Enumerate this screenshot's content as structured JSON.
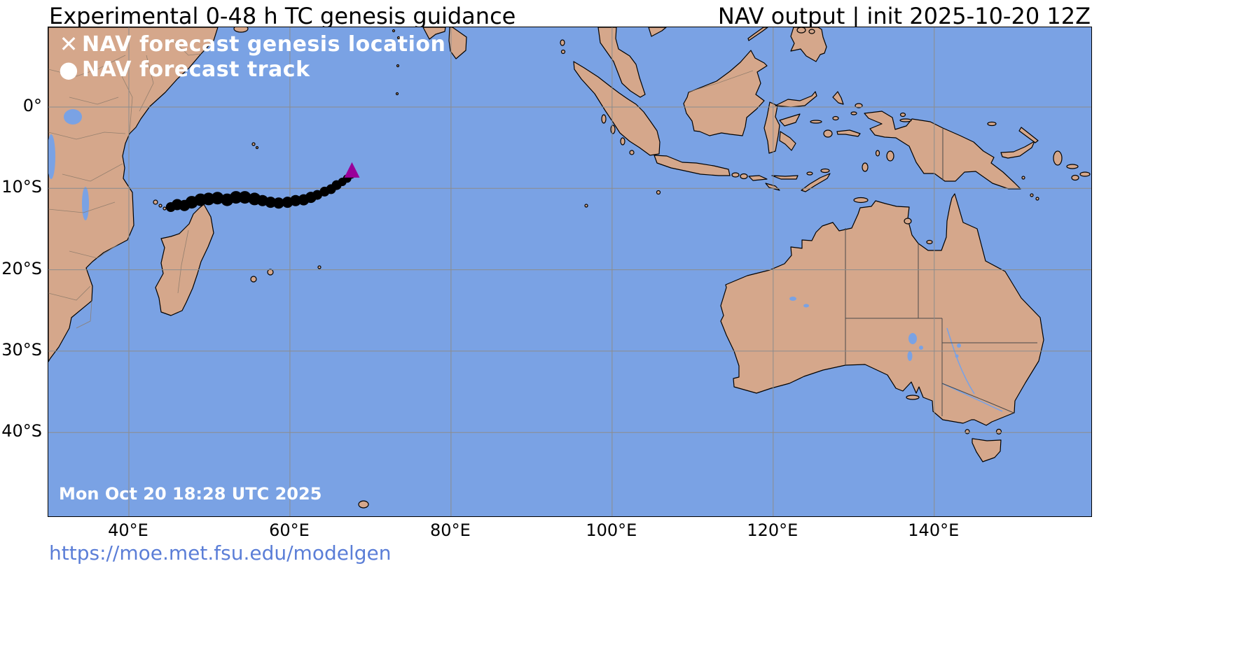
{
  "header": {
    "title": "Experimental 0-48 h TC genesis guidance",
    "model_info": "NAV output | init 2025-10-20 12Z"
  },
  "legend": {
    "genesis": {
      "marker": "✕",
      "label": "NAV forecast genesis location"
    },
    "track": {
      "marker": "●",
      "label": "NAV forecast track"
    }
  },
  "timestamp": "Mon Oct 20 18:28 UTC 2025",
  "footer": {
    "url": "https://moe.met.fsu.edu/modelgen"
  },
  "colors": {
    "ocean": "#7AA2E4",
    "land": "#D5A78B",
    "grid": "#8c8c8c",
    "track": "#000000",
    "genesis": "#990099",
    "link": "#5B7ED7"
  },
  "chart_data": {
    "type": "scatter",
    "subtype": "geographic-map",
    "title": "Experimental 0-48 h TC genesis guidance",
    "model": "NAV",
    "init": "2025-10-20 12Z",
    "valid_label": "Mon Oct 20 18:28 UTC 2025",
    "projection": {
      "lon_range": [
        30,
        159.5
      ],
      "lat_range": [
        -50.3,
        9.8
      ]
    },
    "axes": {
      "lat_ticks": [
        {
          "value": 0,
          "label": "0°"
        },
        {
          "value": -10,
          "label": "10°S"
        },
        {
          "value": -20,
          "label": "20°S"
        },
        {
          "value": -30,
          "label": "30°S"
        },
        {
          "value": -40,
          "label": "40°S"
        }
      ],
      "lon_ticks": [
        {
          "value": 40,
          "label": "40°E"
        },
        {
          "value": 60,
          "label": "60°E"
        },
        {
          "value": 80,
          "label": "80°E"
        },
        {
          "value": 100,
          "label": "100°E"
        },
        {
          "value": 120,
          "label": "120°E"
        },
        {
          "value": 140,
          "label": "140°E"
        }
      ],
      "grid": true
    },
    "series": [
      {
        "name": "NAV forecast track",
        "marker": "circle",
        "color": "#000000",
        "points": [
          [
            45.2,
            -12.3,
            7
          ],
          [
            46.0,
            -12.0,
            8
          ],
          [
            46.9,
            -12.1,
            8
          ],
          [
            47.8,
            -11.7,
            9
          ],
          [
            48.9,
            -11.4,
            9
          ],
          [
            49.9,
            -11.3,
            9
          ],
          [
            51.0,
            -11.2,
            9
          ],
          [
            52.2,
            -11.4,
            9
          ],
          [
            53.3,
            -11.1,
            9
          ],
          [
            54.4,
            -11.1,
            9
          ],
          [
            55.6,
            -11.3,
            9
          ],
          [
            56.6,
            -11.5,
            8
          ],
          [
            57.6,
            -11.7,
            8
          ],
          [
            58.6,
            -11.8,
            8
          ],
          [
            59.7,
            -11.7,
            8
          ],
          [
            60.7,
            -11.5,
            8
          ],
          [
            61.7,
            -11.4,
            8
          ],
          [
            62.6,
            -11.1,
            8
          ],
          [
            63.4,
            -10.8,
            7
          ],
          [
            64.3,
            -10.4,
            7
          ],
          [
            65.1,
            -10.1,
            7
          ],
          [
            65.8,
            -9.6,
            7
          ],
          [
            66.5,
            -9.2,
            6
          ],
          [
            67.1,
            -8.8,
            6
          ],
          [
            67.6,
            -8.3,
            6
          ]
        ]
      },
      {
        "name": "NAV forecast genesis location",
        "marker": "triangle",
        "color": "#990099",
        "points": [
          [
            67.7,
            -7.9
          ]
        ]
      }
    ]
  }
}
